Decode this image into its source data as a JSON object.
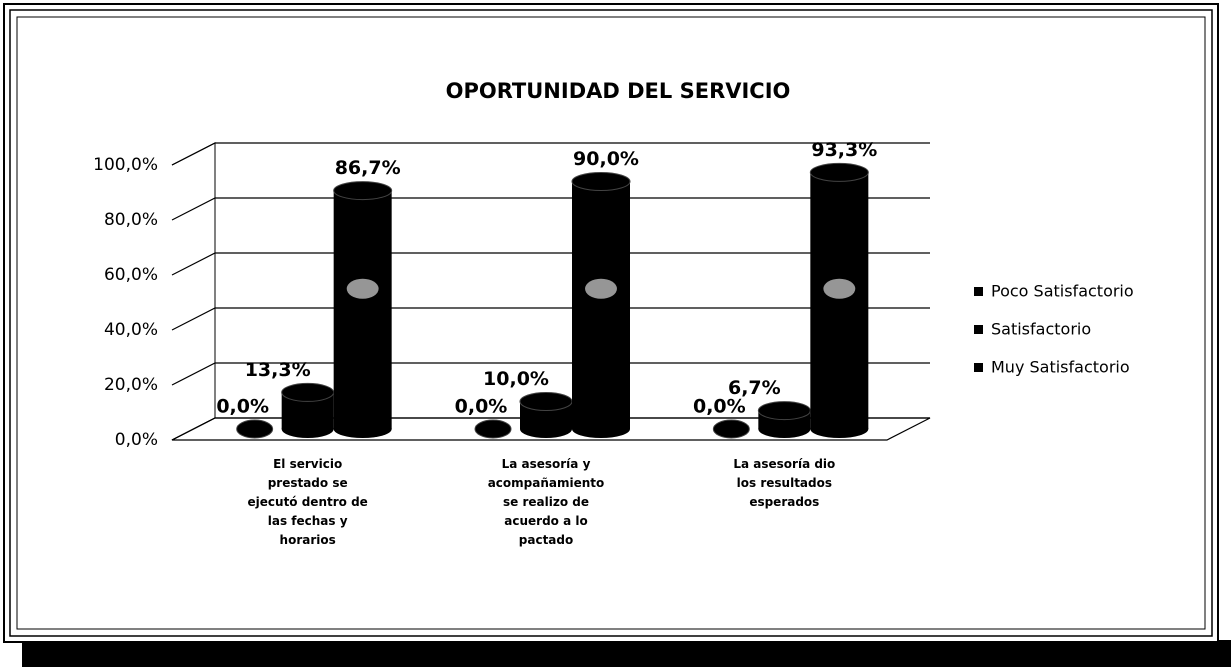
{
  "chart_data": {
    "type": "bar",
    "title": "OPORTUNIDAD DEL SERVICIO",
    "categories": [
      "El servicio prestado se ejecutó dentro de las fechas y horarios",
      "La asesoría y acompañamiento se realizo de acuerdo a lo pactado",
      "La asesoría dio los resultados esperados"
    ],
    "series": [
      {
        "name": "Poco Satisfactorio",
        "color": "#000000",
        "values": [
          0,
          0,
          0
        ],
        "value_labels": [
          "0,0%",
          "0,0%",
          "0,0%"
        ]
      },
      {
        "name": "Satisfactorio",
        "color": "#000000",
        "values": [
          13.3,
          10,
          6.7
        ],
        "value_labels": [
          "13,3%",
          "10,0%",
          "6,7%"
        ]
      },
      {
        "name": "Muy Satisfactorio",
        "color": "#000000",
        "values": [
          86.7,
          90,
          93.3
        ],
        "value_labels": [
          "86,7%",
          "90,0%",
          "93,3%"
        ]
      }
    ],
    "ylim": [
      0,
      100
    ],
    "yticks": [
      {
        "value": 0,
        "label": "0,0%"
      },
      {
        "value": 20,
        "label": "20,0%"
      },
      {
        "value": 40,
        "label": "40,0%"
      },
      {
        "value": 60,
        "label": "60,0%"
      },
      {
        "value": 80,
        "label": "80,0%"
      },
      {
        "value": 100,
        "label": "100,0%"
      }
    ],
    "grid": true,
    "legend": "right"
  }
}
